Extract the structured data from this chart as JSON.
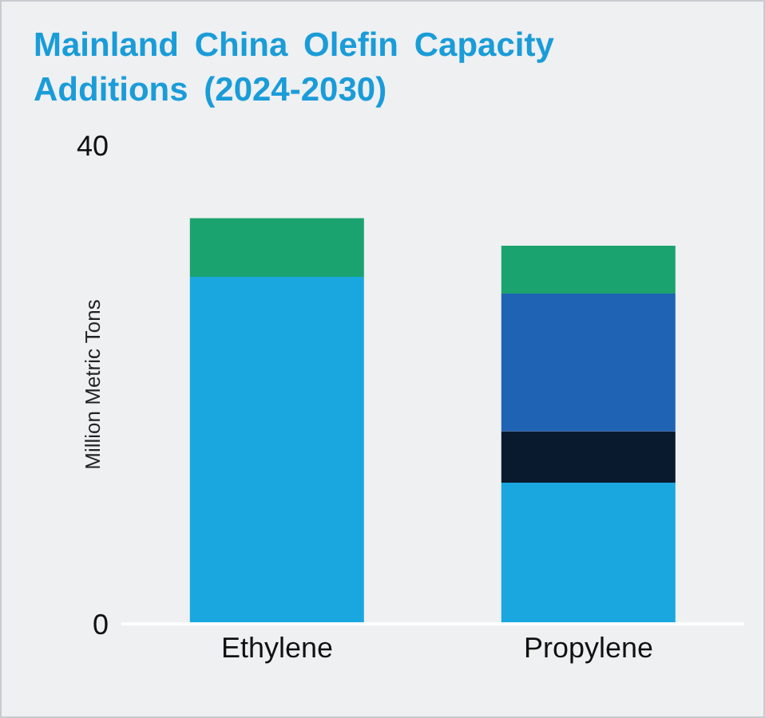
{
  "chart_data": {
    "type": "bar",
    "title": "Mainland China Olefin Capacity Additions (2024-2030)",
    "ylabel": "Million Metric Tons",
    "categories": [
      "Ethylene",
      "Propylene"
    ],
    "stacked": true,
    "ylim": [
      0,
      40
    ],
    "yticks": [
      0,
      40
    ],
    "grid": false,
    "legend": false,
    "series": [
      {
        "color": "#1aa7e0",
        "values": [
          29,
          11.8
        ]
      },
      {
        "color": "#0a1a2e",
        "values": [
          null,
          4.3
        ]
      },
      {
        "color": "#1f63b5",
        "values": [
          null,
          11.5
        ]
      },
      {
        "color": "#1aa36f",
        "values": [
          4.9,
          4
        ]
      }
    ]
  }
}
